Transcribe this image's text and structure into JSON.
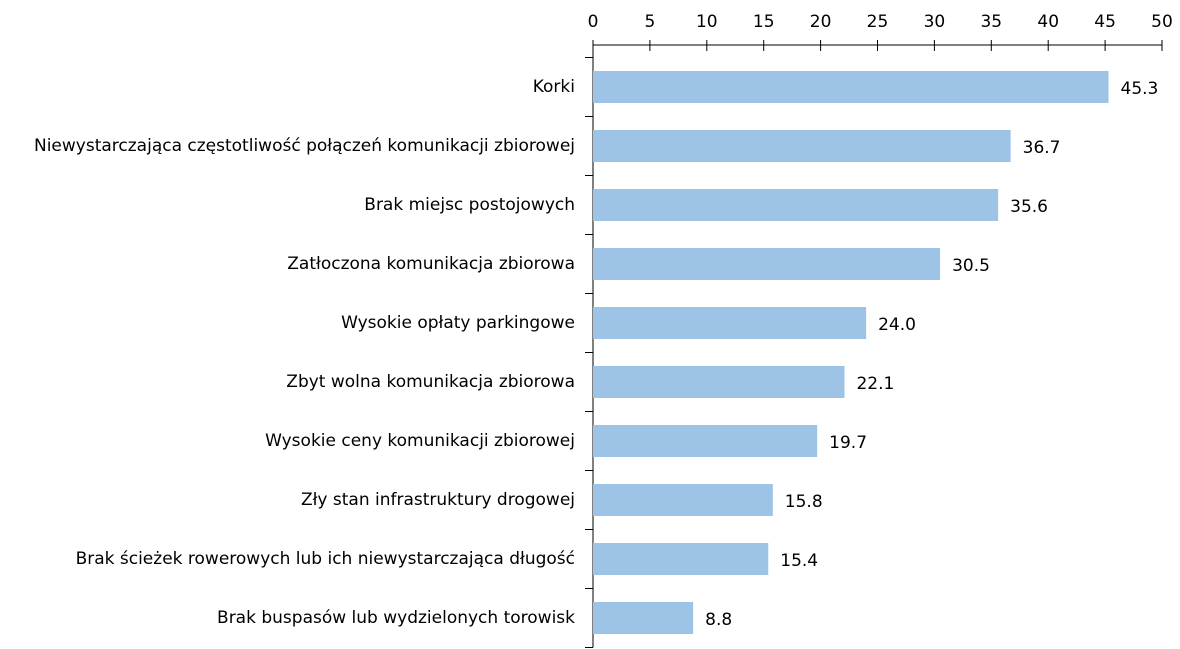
{
  "chart_data": {
    "type": "bar",
    "orientation": "horizontal",
    "categories": [
      "Korki",
      "Niewystarczająca częstotliwość połączeń komunikacji zbiorowej",
      "Brak miejsc postojowych",
      "Zatłoczona komunikacja zbiorowa",
      "Wysokie opłaty parkingowe",
      "Zbyt wolna komunikacja zbiorowa",
      "Wysokie ceny komunikacji zbiorowej",
      "Zły stan infrastruktury drogowej",
      "Brak ścieżek rowerowych lub ich niewystarczająca długość",
      "Brak buspasów lub wydzielonych torowisk"
    ],
    "values": [
      45.3,
      36.7,
      35.6,
      30.5,
      24.0,
      22.1,
      19.7,
      15.8,
      15.4,
      8.8
    ],
    "value_labels": [
      "45.3",
      "36.7",
      "35.6",
      "30.5",
      "24.0",
      "22.1",
      "19.7",
      "15.8",
      "15.4",
      "8.8"
    ],
    "color": "#9dc3e6",
    "xlim": [
      0,
      50
    ],
    "xticks": [
      0,
      5,
      10,
      15,
      20,
      25,
      30,
      35,
      40,
      45,
      50
    ]
  }
}
